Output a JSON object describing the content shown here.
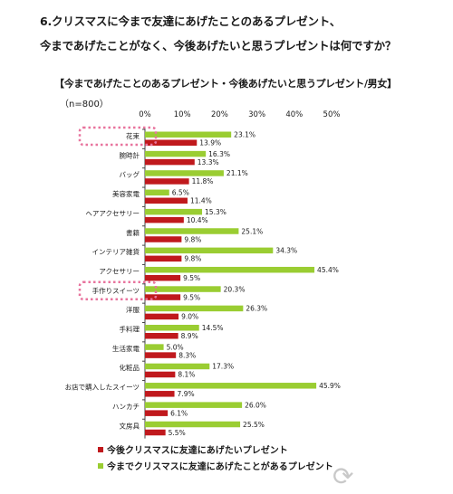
{
  "titles": {
    "line1": "6.クリスマスに今まで友達にあげたことのあるプレゼント、",
    "line2": "今まであげたことがなく、今後あげたいと思うプレゼントは何ですか？"
  },
  "chart_heading": "【今まであげたことのあるプレゼント・今後あげたいと思うプレゼント/男女】",
  "sample_size": "（n=800）",
  "legend": {
    "red_label": "今後クリスマスに友達にあげたいプレゼント",
    "green_label": "今までクリスマスに友達にあげたことがあるプレゼント"
  },
  "colors": {
    "green": "#9acd32",
    "red": "#c0191d",
    "highlight": "#e8749e"
  },
  "watermark": "Response.",
  "chart_data": {
    "type": "bar",
    "orientation": "horizontal",
    "xlim": [
      0,
      50
    ],
    "ticks": [
      "0%",
      "10%",
      "20%",
      "30%",
      "40%",
      "50%"
    ],
    "categories": [
      "花束",
      "腕時計",
      "バッグ",
      "美容家電",
      "ヘアアクセサリー",
      "書籍",
      "インテリア雑貨",
      "アクセサリー",
      "手作りスイーツ",
      "洋服",
      "手料理",
      "生活家電",
      "化粧品",
      "お店で購入したスイーツ",
      "ハンカチ",
      "文房具"
    ],
    "series": [
      {
        "name": "今までクリスマスに友達にあげたことがあるプレゼント",
        "color": "#9acd32",
        "values": [
          23.1,
          16.3,
          21.1,
          6.5,
          15.3,
          25.1,
          34.3,
          45.4,
          20.3,
          26.3,
          14.5,
          5.0,
          17.3,
          45.9,
          26.0,
          25.5
        ],
        "labels": [
          "23.1%",
          "16.3%",
          "21.1%",
          "6.5%",
          "15.3%",
          "25.1%",
          "34.3%",
          "45.4%",
          "20.3%",
          "26.3%",
          "14.5%",
          "5.0%",
          "17.3%",
          "45.9%",
          "26.0%",
          "25.5%"
        ]
      },
      {
        "name": "今後クリスマスに友達にあげたいプレゼント",
        "color": "#c0191d",
        "values": [
          13.9,
          13.3,
          11.8,
          11.4,
          10.4,
          9.8,
          9.8,
          9.5,
          9.5,
          9.0,
          8.9,
          8.3,
          8.1,
          7.9,
          6.1,
          5.5
        ],
        "labels": [
          "13.9%",
          "13.3%",
          "11.8%",
          "11.4%",
          "10.4%",
          "9.8%",
          "9.8%",
          "9.5%",
          "9.5%",
          "9.0%",
          "8.9%",
          "8.3%",
          "8.1%",
          "7.9%",
          "6.1%",
          "5.5%"
        ]
      }
    ],
    "highlighted_categories": [
      "花束",
      "手作りスイーツ"
    ],
    "grid": false
  }
}
